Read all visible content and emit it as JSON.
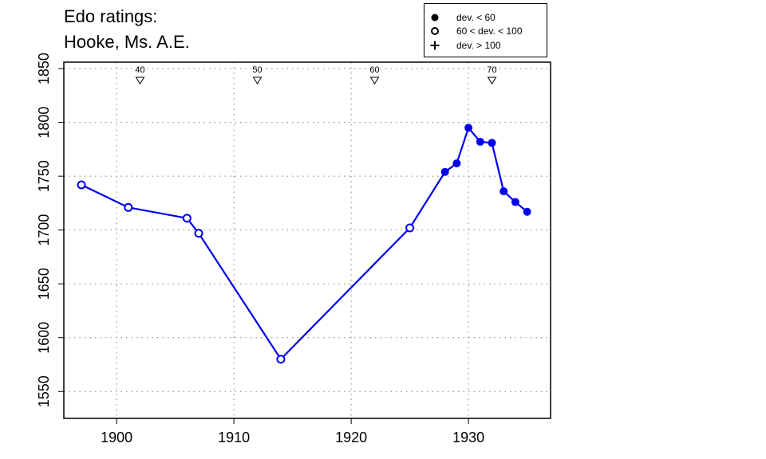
{
  "title_lines": [
    "Edo ratings:",
    "Hooke, Ms. A.E."
  ],
  "legend": {
    "items": [
      {
        "symbol": "filled-circle",
        "label": "dev. < 60"
      },
      {
        "symbol": "open-circle",
        "label": "60 < dev. < 100"
      },
      {
        "symbol": "plus",
        "label": "dev. > 100"
      }
    ]
  },
  "colors": {
    "series": "#0000ee",
    "axis": "#000000",
    "grid": "#808080"
  },
  "chart_data": {
    "type": "line",
    "title": "Edo ratings: Hooke, Ms. A.E.",
    "xlabel": "",
    "ylabel": "",
    "xlim": [
      1895.5,
      1937
    ],
    "ylim": [
      1525,
      1856
    ],
    "x_ticks": [
      1900,
      1910,
      1920,
      1930
    ],
    "y_ticks": [
      1550,
      1600,
      1650,
      1700,
      1750,
      1800,
      1850
    ],
    "grid": true,
    "legend_position": "top-right",
    "age_markers": [
      {
        "x": 1902,
        "label": "40"
      },
      {
        "x": 1912,
        "label": "50"
      },
      {
        "x": 1922,
        "label": "60"
      },
      {
        "x": 1932,
        "label": "70"
      }
    ],
    "series": [
      {
        "points": [
          {
            "x": 1897,
            "y": 1742,
            "dev": "60-100"
          },
          {
            "x": 1901,
            "y": 1721,
            "dev": "60-100"
          },
          {
            "x": 1906,
            "y": 1711,
            "dev": "60-100"
          },
          {
            "x": 1907,
            "y": 1697,
            "dev": "60-100"
          },
          {
            "x": 1914,
            "y": 1580,
            "dev": "60-100"
          },
          {
            "x": 1925,
            "y": 1702,
            "dev": "60-100"
          },
          {
            "x": 1928,
            "y": 1754,
            "dev": "<60"
          },
          {
            "x": 1929,
            "y": 1762,
            "dev": "<60"
          },
          {
            "x": 1930,
            "y": 1795,
            "dev": "<60"
          },
          {
            "x": 1931,
            "y": 1782,
            "dev": "<60"
          },
          {
            "x": 1932,
            "y": 1781,
            "dev": "<60"
          },
          {
            "x": 1933,
            "y": 1736,
            "dev": "<60"
          },
          {
            "x": 1934,
            "y": 1726,
            "dev": "<60"
          },
          {
            "x": 1935,
            "y": 1717,
            "dev": "<60"
          }
        ]
      }
    ]
  }
}
